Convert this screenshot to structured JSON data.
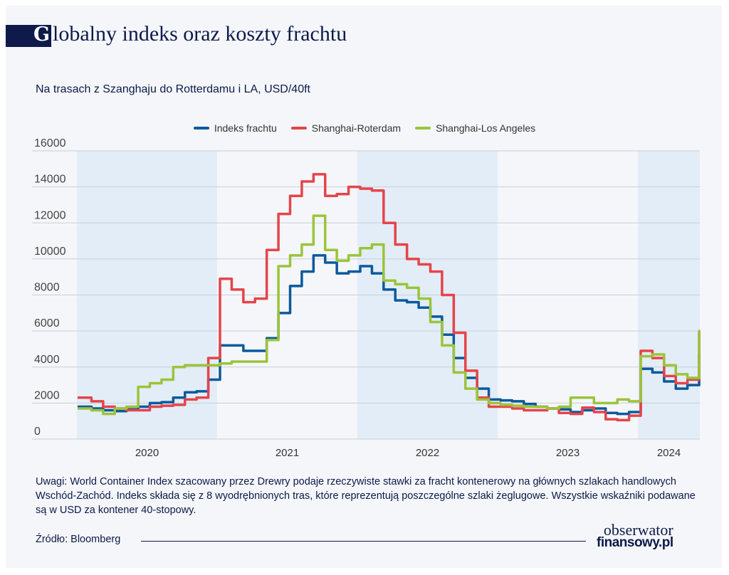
{
  "header": {
    "title_initial": "G",
    "title_rest": "lobalny indeks oraz koszty frachtu",
    "subtitle": "Na trasach z Szanghaju do Rotterdamu i LA, USD/40ft"
  },
  "chart_data": {
    "type": "line",
    "title": "Globalny indeks oraz koszty frachtu",
    "subtitle": "Na trasach z Szanghaju do Rotterdamu i LA, USD/40ft",
    "xlabel": "",
    "ylabel": "",
    "ylim": [
      0,
      16000
    ],
    "y_ticks": [
      "0",
      "2000",
      "4000",
      "6000",
      "8000",
      "10000",
      "12000",
      "14000",
      "16000"
    ],
    "x_ticks": [
      "2020",
      "2021",
      "2022",
      "2023",
      "2024"
    ],
    "grid": "horizontal",
    "year_bands_shaded": [
      "2020",
      "2022",
      "2024"
    ],
    "legend_position": "top",
    "x": [
      "2020-01",
      "2020-02",
      "2020-03",
      "2020-04",
      "2020-05",
      "2020-06",
      "2020-07",
      "2020-08",
      "2020-09",
      "2020-10",
      "2020-11",
      "2020-12",
      "2021-01",
      "2021-02",
      "2021-03",
      "2021-04",
      "2021-05",
      "2021-06",
      "2021-07",
      "2021-08",
      "2021-09",
      "2021-10",
      "2021-11",
      "2021-12",
      "2022-01",
      "2022-02",
      "2022-03",
      "2022-04",
      "2022-05",
      "2022-06",
      "2022-07",
      "2022-08",
      "2022-09",
      "2022-10",
      "2022-11",
      "2022-12",
      "2023-01",
      "2023-02",
      "2023-03",
      "2023-04",
      "2023-05",
      "2023-06",
      "2023-07",
      "2023-08",
      "2023-09",
      "2023-10",
      "2023-11",
      "2023-12",
      "2024-01",
      "2024-02",
      "2024-03",
      "2024-04",
      "2024-05",
      "2024-06"
    ],
    "series": [
      {
        "name": "Indeks frachtu",
        "color": "#0a5a9c",
        "values": [
          1800,
          1700,
          1600,
          1550,
          1650,
          1800,
          2000,
          2050,
          2300,
          2600,
          2650,
          3300,
          5200,
          5200,
          4900,
          4900,
          5600,
          7000,
          8500,
          9300,
          10200,
          9800,
          9200,
          9300,
          9600,
          9200,
          8300,
          7700,
          7600,
          7300,
          6800,
          5800,
          4500,
          3400,
          2800,
          2200,
          2150,
          2100,
          1950,
          1800,
          1700,
          1650,
          1500,
          1600,
          1700,
          1450,
          1400,
          1500,
          3900,
          3700,
          3200,
          2800,
          3000,
          4700
        ]
      },
      {
        "name": "Shanghai-Roterdam",
        "color": "#e5444a",
        "values": [
          2300,
          2100,
          1800,
          1700,
          1600,
          1600,
          1800,
          1850,
          1900,
          2200,
          2300,
          4500,
          8900,
          8300,
          7600,
          7800,
          10500,
          12500,
          13500,
          14300,
          14700,
          13500,
          13600,
          14000,
          13900,
          13800,
          12000,
          10800,
          10000,
          9700,
          9300,
          8000,
          5900,
          3800,
          2300,
          1800,
          1800,
          1700,
          1600,
          1600,
          1700,
          1450,
          1400,
          1750,
          1500,
          1100,
          1050,
          1300,
          4900,
          4500,
          3500,
          3100,
          3300,
          6000
        ]
      },
      {
        "name": "Shanghai-Los Angeles",
        "color": "#9bc43a",
        "values": [
          1700,
          1600,
          1400,
          1700,
          1800,
          2900,
          3100,
          3300,
          4000,
          4100,
          4100,
          4100,
          4200,
          4300,
          4300,
          4300,
          5500,
          9600,
          10200,
          10800,
          12400,
          10500,
          9900,
          10200,
          10600,
          10800,
          8800,
          8600,
          8400,
          7800,
          6500,
          5200,
          3700,
          2800,
          2200,
          2000,
          1900,
          1850,
          1800,
          1800,
          1700,
          1800,
          2300,
          2300,
          2000,
          2000,
          2200,
          2100,
          4600,
          4700,
          4100,
          3600,
          3400,
          6000
        ]
      }
    ]
  },
  "footer": {
    "note": "Uwagi: World Container Index szacowany przez Drewry podaje rzeczywiste stawki za fracht kontenerowy na głównych szlakach handlowych Wschód-Zachód. Indeks składa się z 8 wyodrębnionych tras, które reprezentują poszczególne szlaki żeglugowe. Wszystkie wskaźniki podawane są w USD za kontener 40-stopowy.",
    "source": "Źródło: Bloomberg",
    "logo_line1": "obserwator",
    "logo_line2": "finansowy.pl"
  }
}
